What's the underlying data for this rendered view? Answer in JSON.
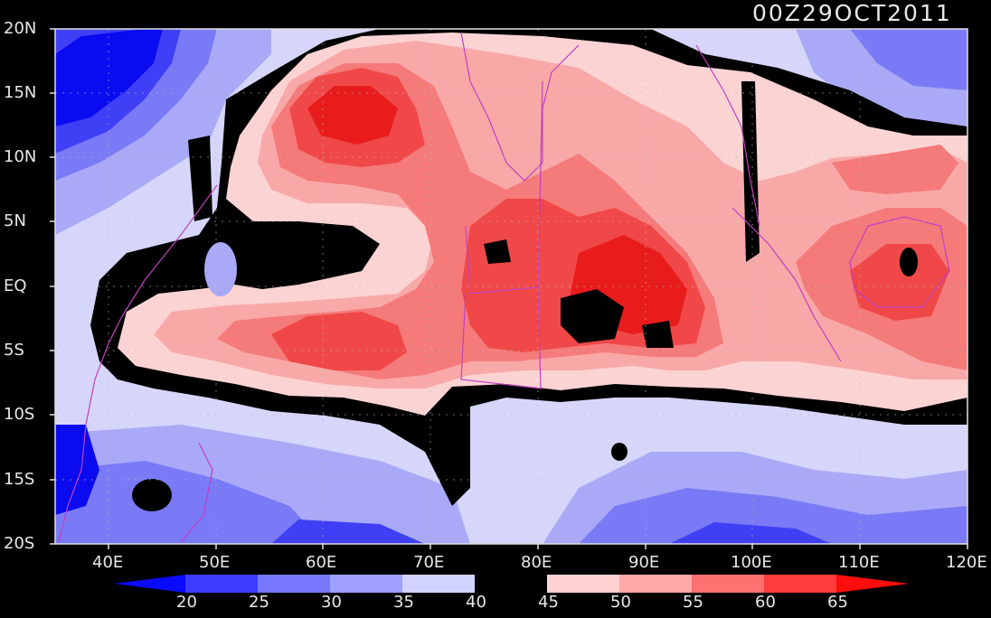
{
  "header": {
    "timestamp": "00Z29OCT2011"
  },
  "axes": {
    "y_ticks": [
      "20N",
      "15N",
      "10N",
      "5N",
      "EQ",
      "5S",
      "10S",
      "15S",
      "20S"
    ],
    "x_ticks": [
      "40E",
      "50E",
      "60E",
      "70E",
      "80E",
      "90E",
      "100E",
      "110E",
      "120E"
    ]
  },
  "colorbar": {
    "levels": [
      "20",
      "25",
      "30",
      "35",
      "40",
      "45",
      "50",
      "55",
      "60",
      "65"
    ],
    "colors": [
      "#0a0aff",
      "#3c3cff",
      "#7878ff",
      "#a0a0ff",
      "#d2d2ff",
      "#000000",
      "#ffd2d2",
      "#ffa8a8",
      "#ff7070",
      "#ff3c3c",
      "#ff0c0c"
    ]
  },
  "palette": {
    "deep_blue": "#0b0bf0",
    "blue": "#3f3ff5",
    "mid_blue": "#7a7af6",
    "light_blue": "#a9a9f7",
    "pale_blue": "#d6d6fa",
    "black": "#000000",
    "pale_red": "#fcd3d3",
    "light_red": "#f9a8a8",
    "mid_red": "#f57a7a",
    "red": "#f04848",
    "deep_red": "#e81c1c",
    "coast": "#c040c0"
  }
}
